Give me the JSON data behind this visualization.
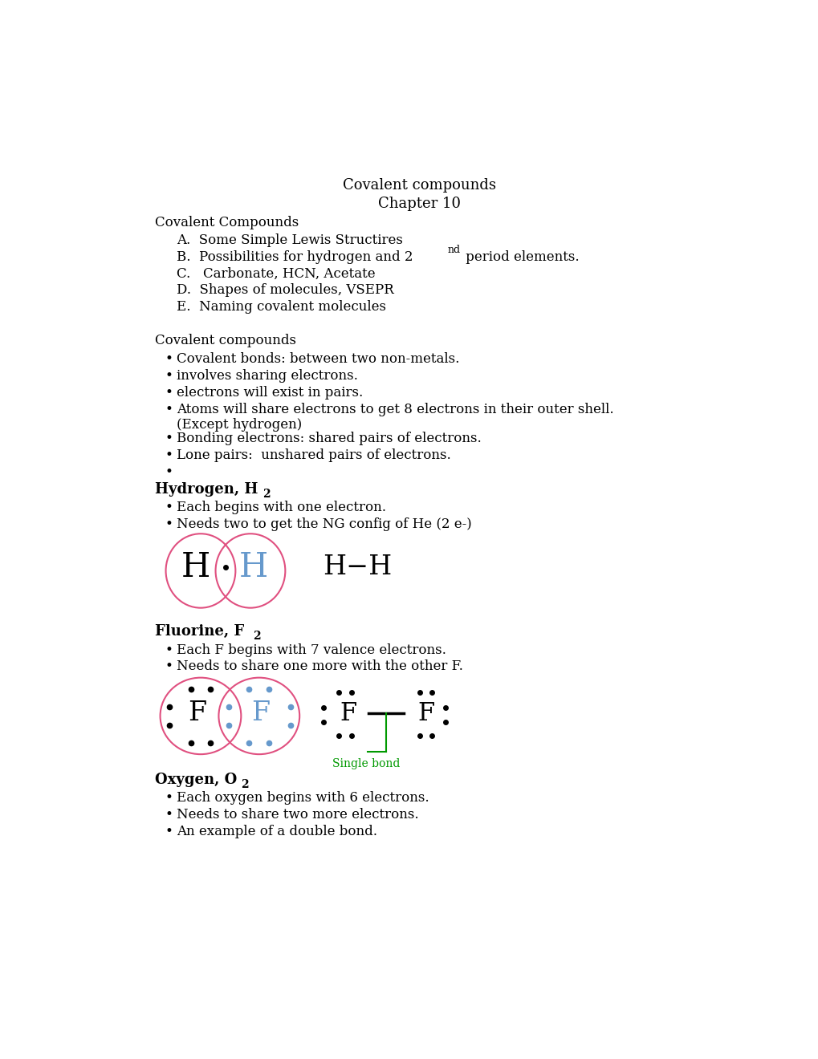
{
  "title_line1": "Covalent compounds",
  "title_line2": "Chapter 10",
  "heading1": "Covalent Compounds",
  "outline_a": "A.  Some Simple Lewis Structires",
  "outline_b1": "B.  Possibilities for hydrogen and 2",
  "outline_b2": "nd",
  "outline_b3": " period elements.",
  "outline_c": "C.   Carbonate, HCN, Acetate",
  "outline_d": "D.  Shapes of molecules, VSEPR",
  "outline_e": "E.  Naming covalent molecules",
  "section2_heading": "Covalent compounds",
  "bullet1": "Covalent bonds: between two non-metals.",
  "bullet2": "involves sharing electrons.",
  "bullet3": "electrons will exist in pairs.",
  "bullet4a": "Atoms will share electrons to get 8 electrons in their outer shell.",
  "bullet4b": "(Except hydrogen)",
  "bullet5": "Bonding electrons: shared pairs of electrons.",
  "bullet6": "Lone pairs:  unshared pairs of electrons.",
  "h2_heading": "Hydrogen, H",
  "h2_sub": "2",
  "h2_b1": "Each begins with one electron.",
  "h2_b2": "Needs two to get the NG config of He (2 e-)",
  "f2_heading": "Fluorine, F",
  "f2_sub": "2",
  "f2_b1": "Each F begins with 7 valence electrons.",
  "f2_b2": "Needs to share one more with the other F.",
  "o2_heading": "Oxygen, O",
  "o2_sub": "2",
  "o2_b1": "Each oxygen begins with 6 electrons.",
  "o2_b2": "Needs to share two more electrons.",
  "o2_b3": "An example of a double bond.",
  "single_bond_label": "Single bond",
  "bg_color": "#ffffff",
  "text_color": "#000000",
  "red_color": "#e05080",
  "blue_color": "#6699cc",
  "green_color": "#009900",
  "dot_color_black": "#000000",
  "dot_color_blue": "#6699cc"
}
